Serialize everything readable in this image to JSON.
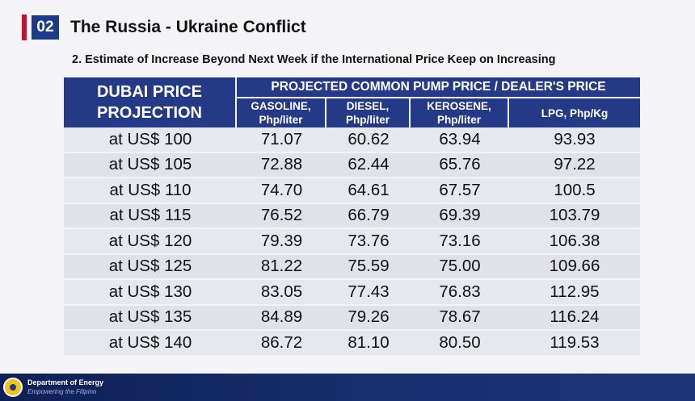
{
  "header": {
    "section_number": "02",
    "title": "The Russia - Ukraine Conflict",
    "subtitle": "2. Estimate of Increase Beyond Next Week if the International Price Keep on Increasing"
  },
  "table": {
    "corner_header": [
      "DUBAI PRICE",
      "PROJECTION"
    ],
    "group_header": "PROJECTED COMMON PUMP PRICE / DEALER'S PRICE",
    "columns": [
      [
        "GASOLINE,",
        "Php/liter"
      ],
      [
        "DIESEL,",
        "Php/liter"
      ],
      [
        "KEROSENE,",
        "Php/liter"
      ],
      [
        "LPG, Php/Kg"
      ]
    ],
    "rows": [
      [
        "at US$ 100",
        "71.07",
        "60.62",
        "63.94",
        "93.93"
      ],
      [
        "at US$ 105",
        "72.88",
        "62.44",
        "65.76",
        "97.22"
      ],
      [
        "at US$ 110",
        "74.70",
        "64.61",
        "67.57",
        "100.5"
      ],
      [
        "at US$ 115",
        "76.52",
        "66.79",
        "69.39",
        "103.79"
      ],
      [
        "at US$ 120",
        "79.39",
        "73.76",
        "73.16",
        "106.38"
      ],
      [
        "at US$ 125",
        "81.22",
        "75.59",
        "75.00",
        "109.66"
      ],
      [
        "at US$ 130",
        "83.05",
        "77.43",
        "76.83",
        "112.95"
      ],
      [
        "at US$ 135",
        "84.89",
        "79.26",
        "78.67",
        "116.24"
      ],
      [
        "at US$ 140",
        "86.72",
        "81.10",
        "80.50",
        "119.53"
      ]
    ]
  },
  "footer": {
    "organization": "Department of Energy",
    "tagline": "Empowering the Filipino",
    "logo_icon": "doe-seal-icon"
  },
  "colors": {
    "accent": "#c8102e",
    "header_blue": "#243a86",
    "footer_navy": "#0e1f55"
  }
}
